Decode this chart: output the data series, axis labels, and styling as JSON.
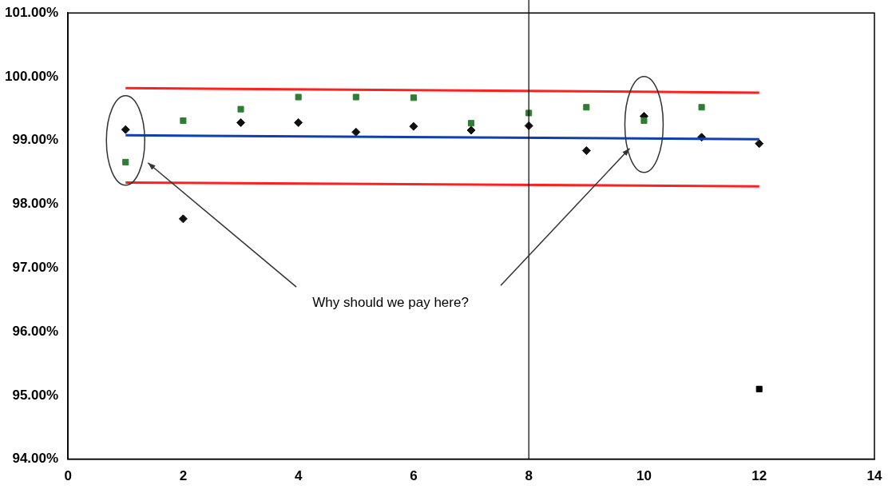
{
  "chart_data": {
    "type": "scatter",
    "xlim": [
      0,
      14
    ],
    "xticks": [
      0,
      2,
      4,
      6,
      8,
      10,
      12,
      14
    ],
    "ylim": [
      94,
      101
    ],
    "yticks": [
      {
        "value": 94,
        "label": "94.00%"
      },
      {
        "value": 95,
        "label": "95.00%"
      },
      {
        "value": 96,
        "label": "96.00%"
      },
      {
        "value": 97,
        "label": "97.00%"
      },
      {
        "value": 98,
        "label": "98.00%"
      },
      {
        "value": 99,
        "label": "99.00%"
      },
      {
        "value": 100,
        "label": "100.00%"
      },
      {
        "value": 101,
        "label": "101.00%"
      }
    ],
    "grid": false,
    "legend": false,
    "series": [
      {
        "type": "line",
        "color": "#ff2020",
        "x": [
          1,
          12
        ],
        "values": [
          99.82,
          99.75
        ],
        "marker": "none",
        "line_style": "solid"
      },
      {
        "type": "line",
        "color": "#ff2020",
        "x": [
          1,
          12
        ],
        "values": [
          98.34,
          98.28
        ],
        "marker": "none",
        "line_style": "solid"
      },
      {
        "type": "line",
        "color": "#1040b0",
        "x": [
          1,
          12
        ],
        "values": [
          99.08,
          99.02
        ],
        "marker": "none",
        "line_style": "solid"
      },
      {
        "type": "scatter",
        "color": "#2e7d32",
        "marker": "square",
        "x": [
          1,
          2,
          3,
          4,
          5,
          6,
          7,
          8,
          9,
          10,
          11
        ],
        "values": [
          98.66,
          99.31,
          99.49,
          99.68,
          99.68,
          99.67,
          99.27,
          99.43,
          99.52,
          99.31,
          99.52
        ]
      },
      {
        "type": "scatter",
        "color": "#000000",
        "marker": "square",
        "x": [
          12
        ],
        "values": [
          95.1
        ]
      },
      {
        "type": "scatter",
        "color": "#111111",
        "marker": "diamond",
        "x": [
          1,
          2,
          3,
          4,
          5,
          6,
          7,
          8,
          9,
          10,
          11,
          12
        ],
        "values": [
          99.17,
          97.77,
          99.28,
          99.28,
          99.13,
          99.22,
          99.16,
          99.23,
          98.84,
          99.38,
          99.05,
          98.95
        ]
      }
    ],
    "ref_lines": [
      {
        "axis": "x",
        "value": 8,
        "color": "#000000"
      }
    ],
    "annotations": [
      "Why should we pay here?"
    ]
  }
}
